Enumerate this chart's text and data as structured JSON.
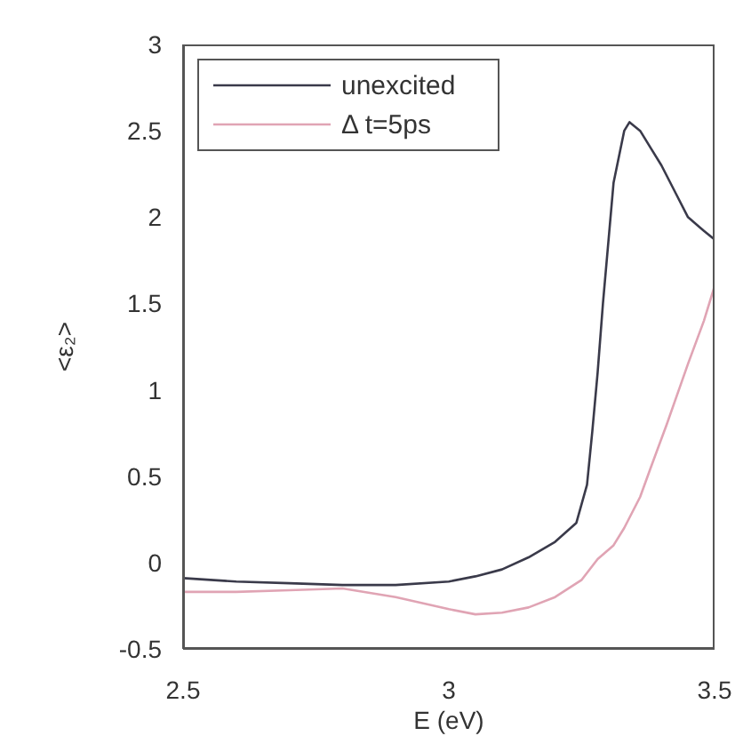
{
  "chart_data": {
    "type": "line",
    "xlabel": "E (eV)",
    "ylabel": "<ε₂>",
    "xlim": [
      2.5,
      3.5
    ],
    "xticks": [
      2.5,
      3,
      3.5
    ],
    "ylim": [
      -0.5,
      3
    ],
    "yticks": [
      -0.5,
      0,
      0.5,
      1,
      1.5,
      2,
      2.5,
      3
    ],
    "grid": false,
    "legend": "top left",
    "marker": "none",
    "line_style": "solid",
    "series": [
      {
        "name": "unexcited",
        "color": "#3a3a4a",
        "x": [
          2.5,
          2.6,
          2.7,
          2.8,
          2.9,
          3.0,
          3.05,
          3.1,
          3.15,
          3.2,
          3.24,
          3.26,
          3.27,
          3.28,
          3.29,
          3.31,
          3.33,
          3.34,
          3.36,
          3.38,
          3.4,
          3.43,
          3.45,
          3.48,
          3.5
        ],
        "values": [
          -0.09,
          -0.11,
          -0.12,
          -0.13,
          -0.13,
          -0.11,
          -0.08,
          -0.04,
          0.03,
          0.12,
          0.23,
          0.45,
          0.76,
          1.1,
          1.5,
          2.2,
          2.5,
          2.55,
          2.5,
          2.4,
          2.3,
          2.12,
          2.0,
          1.92,
          1.87
        ]
      },
      {
        "name": "Δ t=5ps",
        "color": "#e0a4b4",
        "x": [
          2.5,
          2.6,
          2.7,
          2.8,
          2.9,
          3.0,
          3.05,
          3.1,
          3.15,
          3.2,
          3.25,
          3.28,
          3.31,
          3.33,
          3.36,
          3.38,
          3.41,
          3.45,
          3.48,
          3.5
        ],
        "values": [
          -0.17,
          -0.17,
          -0.16,
          -0.15,
          -0.2,
          -0.27,
          -0.3,
          -0.29,
          -0.26,
          -0.2,
          -0.1,
          0.02,
          0.1,
          0.2,
          0.38,
          0.55,
          0.8,
          1.15,
          1.4,
          1.6
        ]
      }
    ]
  }
}
